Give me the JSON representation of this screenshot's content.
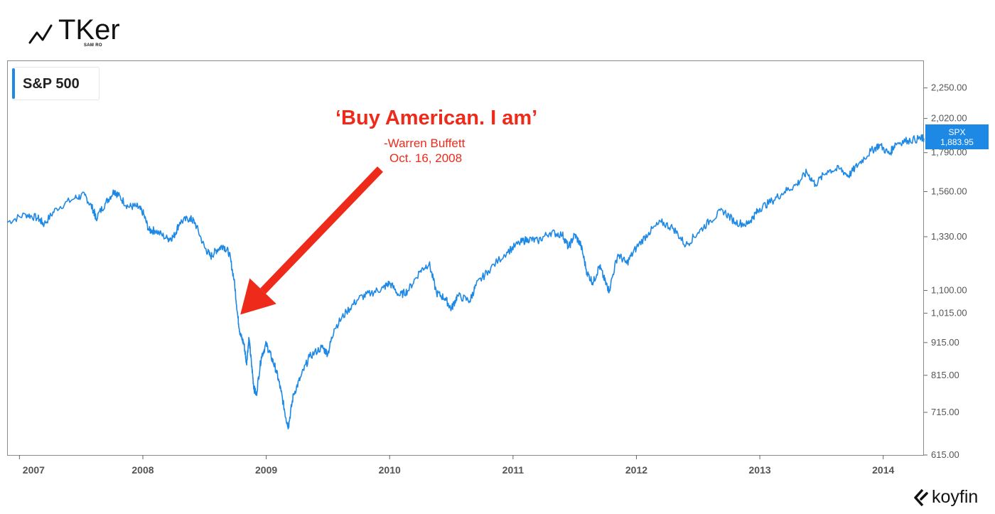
{
  "brand": {
    "logo_title": "TKer",
    "logo_subtitle": "SAM RO",
    "watermark": "koyfin"
  },
  "legend": {
    "label": "S&P 500",
    "color": "#1e88e5"
  },
  "annotation": {
    "title": "‘Buy American. I am’",
    "author": "-Warren Buffett",
    "date": "Oct. 16, 2008",
    "color": "#ee2b1b",
    "arrow_target": {
      "x": 2008.79,
      "y": 1010
    }
  },
  "price_tag": {
    "ticker": "SPX",
    "value": "1,883.95"
  },
  "chart_data": {
    "type": "line",
    "title": "",
    "xlabel": "",
    "ylabel": "",
    "y_scale": "log",
    "ylim": [
      615,
      2400
    ],
    "xlim": [
      2006.9,
      2014.33
    ],
    "x_ticks": [
      {
        "value": 2007,
        "label": "2007"
      },
      {
        "value": 2008,
        "label": "2008"
      },
      {
        "value": 2009,
        "label": "2009"
      },
      {
        "value": 2010,
        "label": "2010"
      },
      {
        "value": 2011,
        "label": "2011"
      },
      {
        "value": 2012,
        "label": "2012"
      },
      {
        "value": 2013,
        "label": "2013"
      },
      {
        "value": 2014,
        "label": "2014"
      }
    ],
    "y_ticks": [
      {
        "value": 2250,
        "label": "2,250.00"
      },
      {
        "value": 2020,
        "label": "2,020.00"
      },
      {
        "value": 1790,
        "label": "1,790.00"
      },
      {
        "value": 1560,
        "label": "1,560.00"
      },
      {
        "value": 1330,
        "label": "1,330.00"
      },
      {
        "value": 1100,
        "label": "1,100.00"
      },
      {
        "value": 1015,
        "label": "1,015.00"
      },
      {
        "value": 915,
        "label": "915.00"
      },
      {
        "value": 815,
        "label": "815.00"
      },
      {
        "value": 715,
        "label": "715.00"
      },
      {
        "value": 615,
        "label": "615.00"
      }
    ],
    "grid": false,
    "legend_position": "top-left",
    "series": [
      {
        "name": "S&P 500",
        "color": "#1e88e5",
        "points": [
          [
            2006.9,
            1400
          ],
          [
            2007.05,
            1440
          ],
          [
            2007.15,
            1420
          ],
          [
            2007.2,
            1390
          ],
          [
            2007.3,
            1470
          ],
          [
            2007.45,
            1525
          ],
          [
            2007.53,
            1540
          ],
          [
            2007.6,
            1460
          ],
          [
            2007.62,
            1420
          ],
          [
            2007.7,
            1500
          ],
          [
            2007.77,
            1565
          ],
          [
            2007.8,
            1540
          ],
          [
            2007.88,
            1480
          ],
          [
            2007.95,
            1480
          ],
          [
            2008.0,
            1450
          ],
          [
            2008.05,
            1360
          ],
          [
            2008.1,
            1360
          ],
          [
            2008.2,
            1320
          ],
          [
            2008.25,
            1330
          ],
          [
            2008.3,
            1400
          ],
          [
            2008.38,
            1420
          ],
          [
            2008.42,
            1400
          ],
          [
            2008.5,
            1280
          ],
          [
            2008.55,
            1240
          ],
          [
            2008.6,
            1270
          ],
          [
            2008.65,
            1290
          ],
          [
            2008.7,
            1255
          ],
          [
            2008.74,
            1140
          ],
          [
            2008.77,
            1000
          ],
          [
            2008.79,
            940
          ],
          [
            2008.82,
            910
          ],
          [
            2008.84,
            850
          ],
          [
            2008.86,
            930
          ],
          [
            2008.88,
            850
          ],
          [
            2008.9,
            780
          ],
          [
            2008.92,
            760
          ],
          [
            2008.96,
            870
          ],
          [
            2009.0,
            910
          ],
          [
            2009.04,
            870
          ],
          [
            2009.08,
            830
          ],
          [
            2009.12,
            770
          ],
          [
            2009.16,
            700
          ],
          [
            2009.18,
            680
          ],
          [
            2009.22,
            760
          ],
          [
            2009.28,
            810
          ],
          [
            2009.35,
            870
          ],
          [
            2009.45,
            900
          ],
          [
            2009.5,
            880
          ],
          [
            2009.55,
            960
          ],
          [
            2009.65,
            1020
          ],
          [
            2009.75,
            1070
          ],
          [
            2009.85,
            1090
          ],
          [
            2009.95,
            1110
          ],
          [
            2010.0,
            1130
          ],
          [
            2010.08,
            1080
          ],
          [
            2010.15,
            1100
          ],
          [
            2010.25,
            1180
          ],
          [
            2010.32,
            1210
          ],
          [
            2010.38,
            1090
          ],
          [
            2010.45,
            1070
          ],
          [
            2010.5,
            1030
          ],
          [
            2010.55,
            1080
          ],
          [
            2010.65,
            1060
          ],
          [
            2010.7,
            1120
          ],
          [
            2010.8,
            1180
          ],
          [
            2010.95,
            1260
          ],
          [
            2011.05,
            1300
          ],
          [
            2011.12,
            1320
          ],
          [
            2011.2,
            1310
          ],
          [
            2011.3,
            1350
          ],
          [
            2011.4,
            1340
          ],
          [
            2011.45,
            1280
          ],
          [
            2011.5,
            1340
          ],
          [
            2011.55,
            1290
          ],
          [
            2011.6,
            1170
          ],
          [
            2011.65,
            1130
          ],
          [
            2011.7,
            1200
          ],
          [
            2011.75,
            1130
          ],
          [
            2011.78,
            1100
          ],
          [
            2011.85,
            1250
          ],
          [
            2011.92,
            1210
          ],
          [
            2012.0,
            1280
          ],
          [
            2012.1,
            1350
          ],
          [
            2012.2,
            1400
          ],
          [
            2012.3,
            1370
          ],
          [
            2012.4,
            1290
          ],
          [
            2012.5,
            1350
          ],
          [
            2012.6,
            1410
          ],
          [
            2012.7,
            1460
          ],
          [
            2012.8,
            1400
          ],
          [
            2012.9,
            1390
          ],
          [
            2012.95,
            1430
          ],
          [
            2013.0,
            1470
          ],
          [
            2013.1,
            1510
          ],
          [
            2013.2,
            1560
          ],
          [
            2013.3,
            1600
          ],
          [
            2013.38,
            1670
          ],
          [
            2013.45,
            1600
          ],
          [
            2013.55,
            1680
          ],
          [
            2013.65,
            1690
          ],
          [
            2013.72,
            1650
          ],
          [
            2013.8,
            1720
          ],
          [
            2013.9,
            1800
          ],
          [
            2013.97,
            1840
          ],
          [
            2014.05,
            1780
          ],
          [
            2014.1,
            1850
          ],
          [
            2014.2,
            1870
          ],
          [
            2014.3,
            1880
          ],
          [
            2014.33,
            1883.95
          ]
        ]
      }
    ]
  }
}
